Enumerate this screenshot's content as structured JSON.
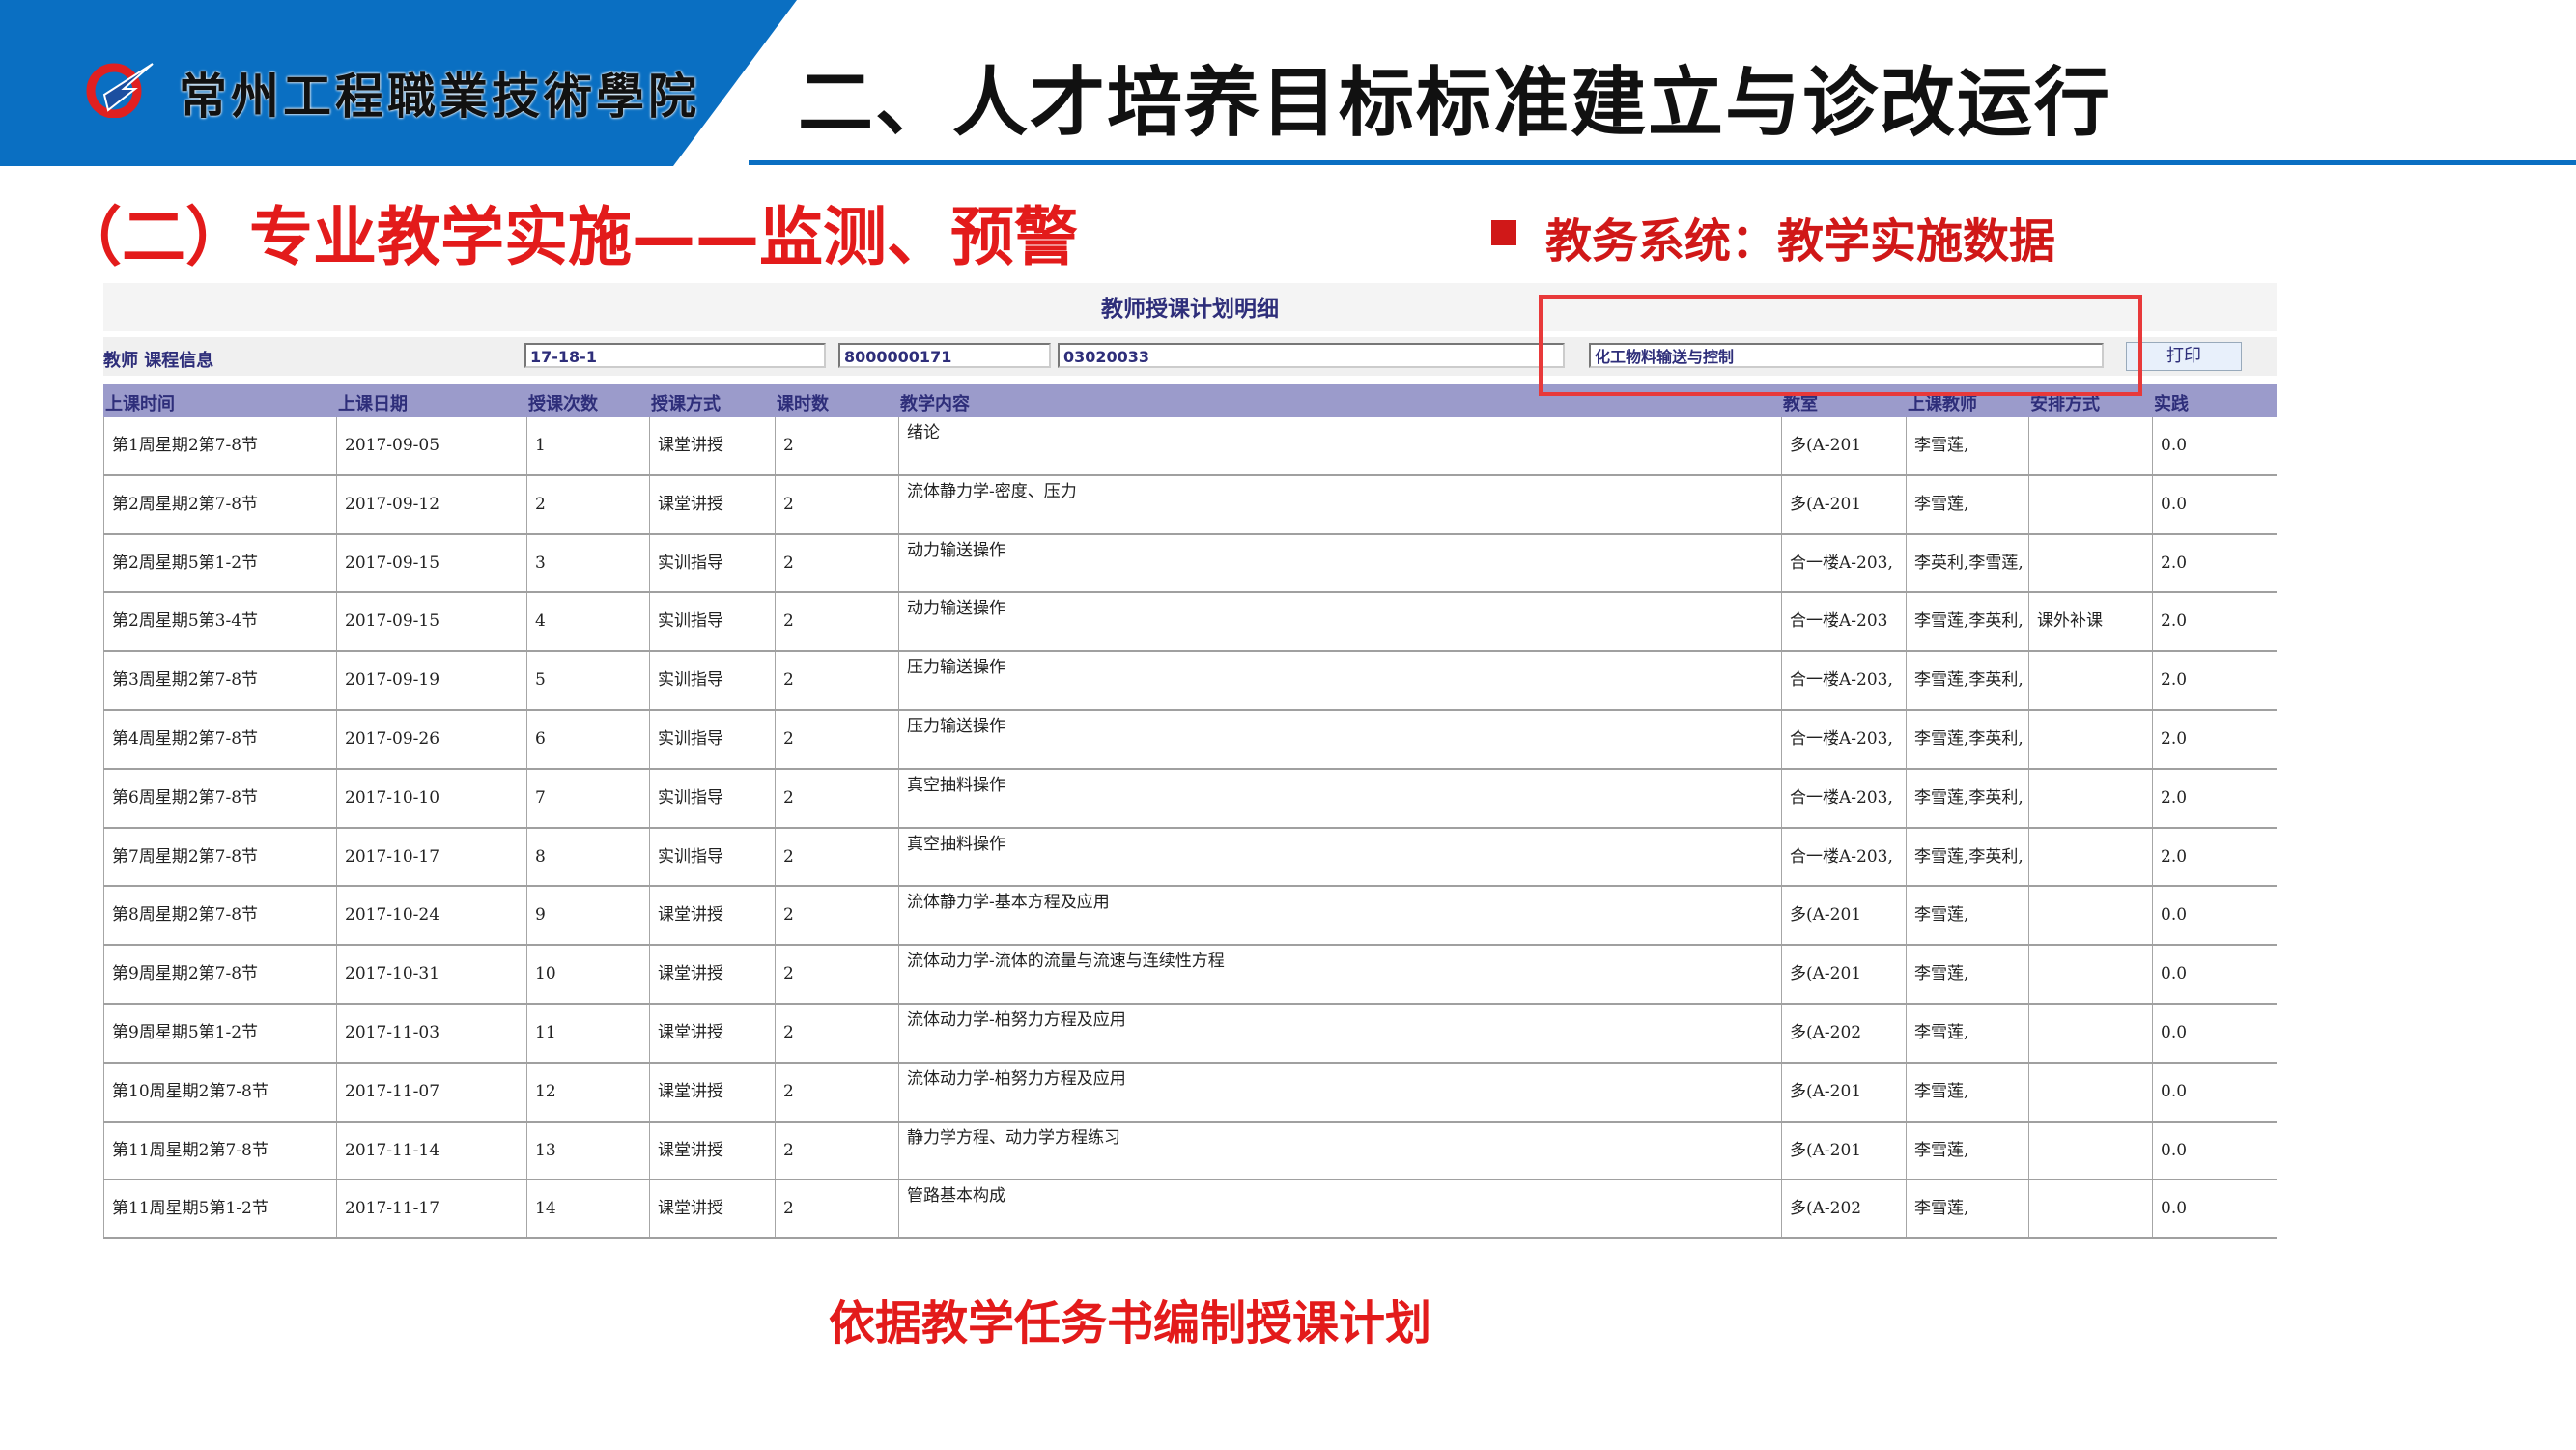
{
  "header": {
    "school_name": "常州工程職業技術學院",
    "title": "二、人才培养目标标准建立与诊改运行",
    "brand_color": "#0a6fc2"
  },
  "subtitle": "（二）专业教学实施——监测、预警",
  "section_label": "教务系统：教学实施数据",
  "panel": {
    "title": "教师授课计划明细",
    "info_label": "教师 课程信息",
    "term": "17-18-1",
    "teacher_id": "8000000171",
    "course_code": "03020033",
    "course_name": "化工物料输送与控制",
    "print_label": "打印"
  },
  "table": {
    "columns": [
      "上课时间",
      "上课日期",
      "授课次数",
      "授课方式",
      "课时数",
      "教学内容",
      "教室",
      "上课教师",
      "安排方式",
      "实践"
    ],
    "rows": [
      [
        "第1周星期2第7-8节",
        "2017-09-05",
        "1",
        "课堂讲授",
        "2",
        "绪论",
        "多(A-201",
        "李雪莲,",
        "",
        "0.0"
      ],
      [
        "第2周星期2第7-8节",
        "2017-09-12",
        "2",
        "课堂讲授",
        "2",
        "流体静力学-密度、压力",
        "多(A-201",
        "李雪莲,",
        "",
        "0.0"
      ],
      [
        "第2周星期5第1-2节",
        "2017-09-15",
        "3",
        "实训指导",
        "2",
        "动力输送操作",
        "合一楼A-203,",
        "李英利,李雪莲,",
        "",
        "2.0"
      ],
      [
        "第2周星期5第3-4节",
        "2017-09-15",
        "4",
        "实训指导",
        "2",
        "动力输送操作",
        "合一楼A-203",
        "李雪莲,李英利,",
        "课外补课",
        "2.0"
      ],
      [
        "第3周星期2第7-8节",
        "2017-09-19",
        "5",
        "实训指导",
        "2",
        "压力输送操作",
        "合一楼A-203,",
        "李雪莲,李英利,",
        "",
        "2.0"
      ],
      [
        "第4周星期2第7-8节",
        "2017-09-26",
        "6",
        "实训指导",
        "2",
        "压力输送操作",
        "合一楼A-203,",
        "李雪莲,李英利,",
        "",
        "2.0"
      ],
      [
        "第6周星期2第7-8节",
        "2017-10-10",
        "7",
        "实训指导",
        "2",
        "真空抽料操作",
        "合一楼A-203,",
        "李雪莲,李英利,",
        "",
        "2.0"
      ],
      [
        "第7周星期2第7-8节",
        "2017-10-17",
        "8",
        "实训指导",
        "2",
        "真空抽料操作",
        "合一楼A-203,",
        "李雪莲,李英利,",
        "",
        "2.0"
      ],
      [
        "第8周星期2第7-8节",
        "2017-10-24",
        "9",
        "课堂讲授",
        "2",
        "流体静力学-基本方程及应用",
        "多(A-201",
        "李雪莲,",
        "",
        "0.0"
      ],
      [
        "第9周星期2第7-8节",
        "2017-10-31",
        "10",
        "课堂讲授",
        "2",
        "流体动力学-流体的流量与流速与连续性方程",
        "多(A-201",
        "李雪莲,",
        "",
        "0.0"
      ],
      [
        "第9周星期5第1-2节",
        "2017-11-03",
        "11",
        "课堂讲授",
        "2",
        "流体动力学-柏努力方程及应用",
        "多(A-202",
        "李雪莲,",
        "",
        "0.0"
      ],
      [
        "第10周星期2第7-8节",
        "2017-11-07",
        "12",
        "课堂讲授",
        "2",
        "流体动力学-柏努力方程及应用",
        "多(A-201",
        "李雪莲,",
        "",
        "0.0"
      ],
      [
        "第11周星期2第7-8节",
        "2017-11-14",
        "13",
        "课堂讲授",
        "2",
        "静力学方程、动力学方程练习",
        "多(A-201",
        "李雪莲,",
        "",
        "0.0"
      ],
      [
        "第11周星期5第1-2节",
        "2017-11-17",
        "14",
        "课堂讲授",
        "2",
        "管路基本构成",
        "多(A-202",
        "李雪莲,",
        "",
        "0.0"
      ]
    ]
  },
  "bottom_note": "依据教学任务书编制授课计划"
}
